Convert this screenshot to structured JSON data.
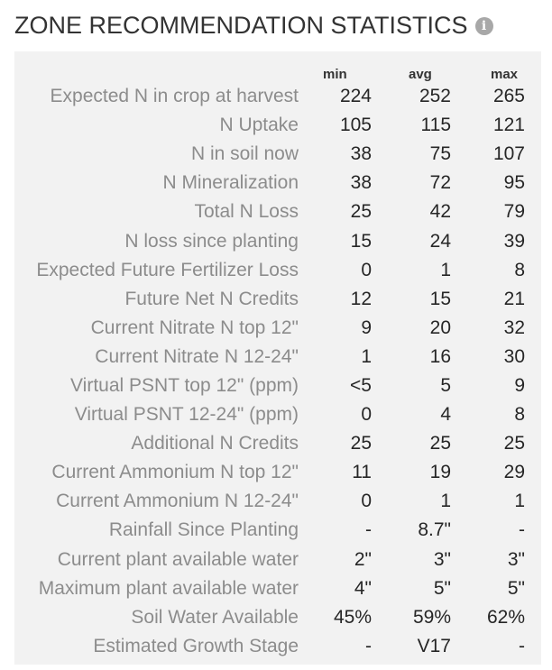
{
  "header": {
    "title": "ZONE RECOMMENDATION STATISTICS",
    "info_icon": "info-icon",
    "info_glyph": "i"
  },
  "table": {
    "columns": [
      "min",
      "avg",
      "max"
    ],
    "rows": [
      {
        "label": "Expected N in crop at harvest",
        "min": "224",
        "avg": "252",
        "max": "265"
      },
      {
        "label": "N Uptake",
        "min": "105",
        "avg": "115",
        "max": "121"
      },
      {
        "label": "N in soil now",
        "min": "38",
        "avg": "75",
        "max": "107"
      },
      {
        "label": "N Mineralization",
        "min": "38",
        "avg": "72",
        "max": "95"
      },
      {
        "label": "Total N Loss",
        "min": "25",
        "avg": "42",
        "max": "79"
      },
      {
        "label": "N loss since planting",
        "min": "15",
        "avg": "24",
        "max": "39"
      },
      {
        "label": "Expected Future Fertilizer Loss",
        "min": "0",
        "avg": "1",
        "max": "8"
      },
      {
        "label": "Future Net N Credits",
        "min": "12",
        "avg": "15",
        "max": "21"
      },
      {
        "label": "Current Nitrate N top 12\"",
        "min": "9",
        "avg": "20",
        "max": "32"
      },
      {
        "label": "Current Nitrate N 12-24\"",
        "min": "1",
        "avg": "16",
        "max": "30"
      },
      {
        "label": "Virtual PSNT top 12\" (ppm)",
        "min": "<5",
        "avg": "5",
        "max": "9"
      },
      {
        "label": "Virtual PSNT 12-24\" (ppm)",
        "min": "0",
        "avg": "4",
        "max": "8"
      },
      {
        "label": "Additional N Credits",
        "min": "25",
        "avg": "25",
        "max": "25"
      },
      {
        "label": "Current Ammonium N top 12\"",
        "min": "11",
        "avg": "19",
        "max": "29"
      },
      {
        "label": "Current Ammonium N 12-24\"",
        "min": "0",
        "avg": "1",
        "max": "1"
      },
      {
        "label": "Rainfall Since Planting",
        "min": "-",
        "avg": "8.7\"",
        "max": "-"
      },
      {
        "label": "Current plant available water",
        "min": "2\"",
        "avg": "3\"",
        "max": "3\""
      },
      {
        "label": "Maximum plant available water",
        "min": "4\"",
        "avg": "5\"",
        "max": "5\""
      },
      {
        "label": "Soil Water Available",
        "min": "45%",
        "avg": "59%",
        "max": "62%"
      },
      {
        "label": "Estimated Growth Stage",
        "min": "-",
        "avg": "V17",
        "max": "-"
      }
    ]
  },
  "colors": {
    "panel_background": "#f2f2f2",
    "label_text": "#8c8c8c",
    "value_text": "#262626",
    "icon": "#a8a8a8"
  }
}
